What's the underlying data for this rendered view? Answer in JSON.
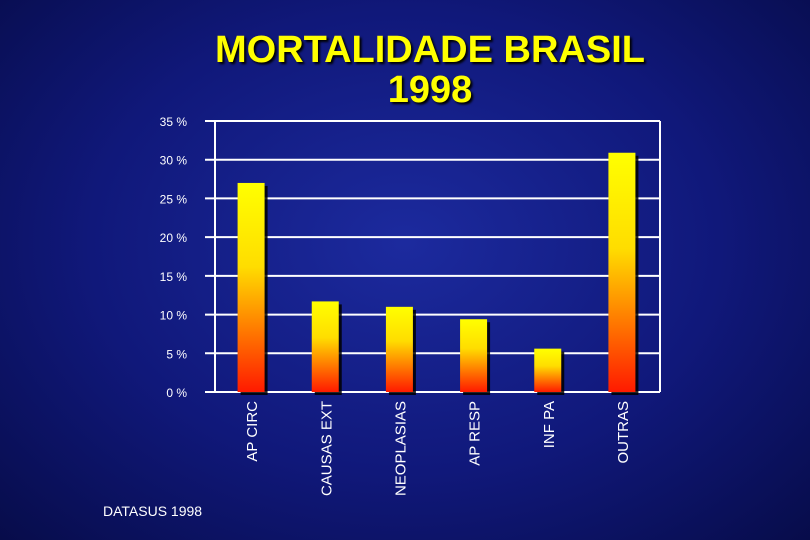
{
  "title_line1": "MORTALIDADE BRASIL",
  "title_line2": "1998",
  "source": "DATASUS 1998",
  "chart_data": {
    "type": "bar",
    "title": "MORTALIDADE BRASIL 1998",
    "categories": [
      "AP CIRC",
      "CAUSAS EXT",
      "NEOPLASIAS",
      "AP RESP",
      "INF PA",
      "OUTRAS"
    ],
    "values": [
      27.0,
      11.7,
      11.0,
      9.4,
      5.6,
      30.9
    ],
    "ylim": [
      0,
      35
    ],
    "yticks": [
      "0 %",
      "5 %",
      "10 %",
      "15 %",
      "20 %",
      "25 %",
      "30 %",
      "35 %"
    ],
    "grid": true,
    "colors": {
      "bar_top": "#ffff00",
      "bar_bottom": "#ff1a00",
      "grid": "#ffffff",
      "text": "#ffffff",
      "title": "#ffff00"
    }
  }
}
